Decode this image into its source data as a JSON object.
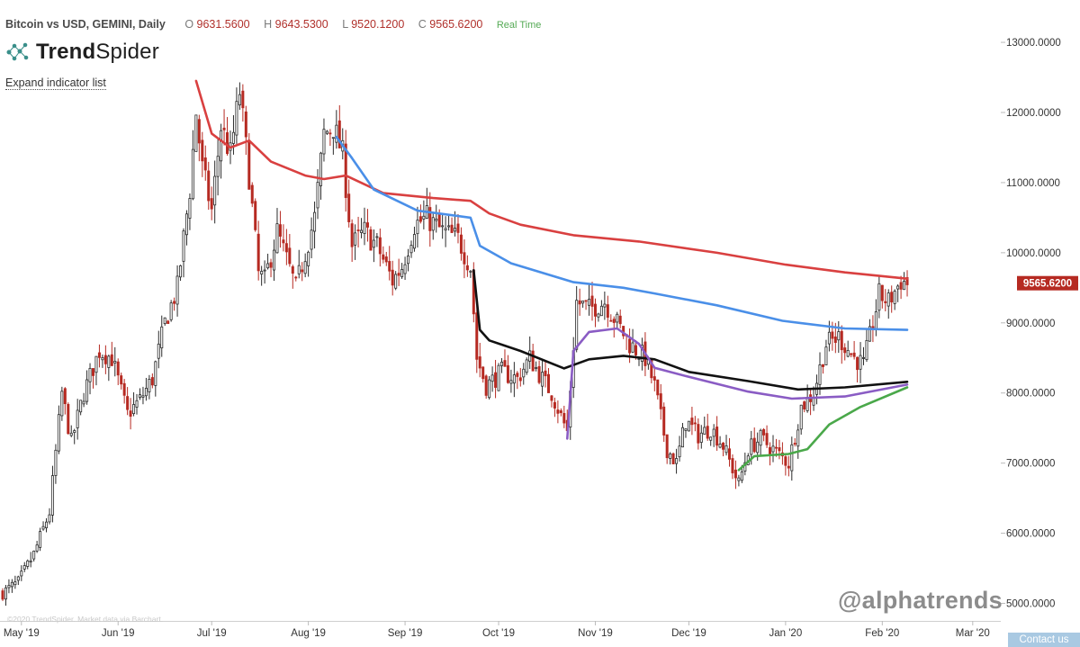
{
  "header": {
    "symbol": "Bitcoin vs USD, GEMINI, Daily",
    "open_label": "O",
    "open": "9631.5600",
    "high_label": "H",
    "high": "9643.5300",
    "low_label": "L",
    "low": "9520.1200",
    "close_label": "C",
    "close": "9565.6200",
    "realtime": "Real Time"
  },
  "brand": {
    "name_bold": "Trend",
    "name_rest": "Spider"
  },
  "expand_indicators": "Expand indicator list",
  "watermark": "@alphatrends",
  "copyright": "©2020 TrendSpider. Market data via Barchart.",
  "contact": "Contact us",
  "colors": {
    "up_candle": "#2b2b2b",
    "down_candle": "#b62a22",
    "ma_red": "#d94040",
    "ma_blue": "#4a8fe8",
    "ma_black": "#111111",
    "ma_purple": "#8a5cc4",
    "ma_green": "#4aa84a",
    "price_tag": "#b62a22"
  },
  "chart_data": {
    "type": "candlestick",
    "title": "Bitcoin vs USD, GEMINI, Daily",
    "y_axis": {
      "position": "right",
      "ticks": [
        5000,
        6000,
        7000,
        8000,
        9000,
        10000,
        11000,
        12000,
        13000
      ],
      "tick_labels": [
        "5000.0000",
        "6000.0000",
        "7000.0000",
        "8000.0000",
        "9000.0000",
        "10000.0000",
        "11000.0000",
        "12000.0000",
        "13000.0000"
      ],
      "range": [
        4750,
        13450
      ]
    },
    "x_axis": {
      "ticks": [
        "May '19",
        "Jun '19",
        "Jul '19",
        "Aug '19",
        "Sep '19",
        "Oct '19",
        "Nov '19",
        "Dec '19",
        "Jan '20",
        "Feb '20",
        "Mar '20"
      ],
      "range": [
        "2019-04-25",
        "2020-03-10"
      ]
    },
    "last_price": 9565.62,
    "last_price_label": "9565.6200",
    "grid": false,
    "price_waypoints": [
      [
        "2019-04-25",
        5150
      ],
      [
        "2019-04-30",
        5300
      ],
      [
        "2019-05-05",
        5700
      ],
      [
        "2019-05-10",
        6300
      ],
      [
        "2019-05-14",
        8000
      ],
      [
        "2019-05-17",
        7300
      ],
      [
        "2019-05-21",
        8000
      ],
      [
        "2019-05-26",
        8600
      ],
      [
        "2019-05-30",
        8500
      ],
      [
        "2019-06-04",
        7700
      ],
      [
        "2019-06-08",
        7900
      ],
      [
        "2019-06-12",
        8200
      ],
      [
        "2019-06-16",
        9000
      ],
      [
        "2019-06-20",
        9500
      ],
      [
        "2019-06-24",
        10900
      ],
      [
        "2019-06-26",
        12000
      ],
      [
        "2019-06-28",
        11200
      ],
      [
        "2019-07-01",
        10600
      ],
      [
        "2019-07-04",
        11800
      ],
      [
        "2019-07-07",
        11400
      ],
      [
        "2019-07-10",
        12300
      ],
      [
        "2019-07-13",
        11100
      ],
      [
        "2019-07-16",
        9700
      ],
      [
        "2019-07-18",
        9600
      ],
      [
        "2019-07-22",
        10300
      ],
      [
        "2019-07-25",
        9900
      ],
      [
        "2019-07-28",
        9500
      ],
      [
        "2019-07-31",
        10000
      ],
      [
        "2019-08-03",
        10500
      ],
      [
        "2019-08-06",
        11700
      ],
      [
        "2019-08-09",
        11800
      ],
      [
        "2019-08-12",
        11400
      ],
      [
        "2019-08-15",
        10100
      ],
      [
        "2019-08-19",
        10300
      ],
      [
        "2019-08-23",
        10100
      ],
      [
        "2019-08-28",
        9600
      ],
      [
        "2019-08-31",
        9800
      ],
      [
        "2019-09-04",
        10400
      ],
      [
        "2019-09-08",
        10500
      ],
      [
        "2019-09-13",
        10300
      ],
      [
        "2019-09-18",
        10200
      ],
      [
        "2019-09-22",
        9800
      ],
      [
        "2019-09-24",
        8500
      ],
      [
        "2019-09-27",
        8100
      ],
      [
        "2019-10-02",
        8300
      ],
      [
        "2019-10-07",
        8200
      ],
      [
        "2019-10-11",
        8500
      ],
      [
        "2019-10-15",
        8200
      ],
      [
        "2019-10-18",
        8000
      ],
      [
        "2019-10-23",
        7450
      ],
      [
        "2019-10-26",
        9300
      ],
      [
        "2019-10-30",
        9200
      ],
      [
        "2019-11-04",
        9300
      ],
      [
        "2019-11-08",
        9000
      ],
      [
        "2019-11-12",
        8700
      ],
      [
        "2019-11-17",
        8500
      ],
      [
        "2019-11-20",
        8100
      ],
      [
        "2019-11-24",
        7200
      ],
      [
        "2019-11-27",
        7000
      ],
      [
        "2019-11-30",
        7600
      ],
      [
        "2019-12-04",
        7400
      ],
      [
        "2019-12-08",
        7500
      ],
      [
        "2019-12-12",
        7250
      ],
      [
        "2019-12-17",
        6700
      ],
      [
        "2019-12-20",
        7200
      ],
      [
        "2019-12-24",
        7350
      ],
      [
        "2019-12-28",
        7200
      ],
      [
        "2020-01-02",
        7000
      ],
      [
        "2020-01-06",
        7800
      ],
      [
        "2020-01-10",
        8000
      ],
      [
        "2020-01-14",
        8700
      ],
      [
        "2020-01-18",
        8800
      ],
      [
        "2020-01-23",
        8500
      ],
      [
        "2020-01-26",
        8400
      ],
      [
        "2020-01-31",
        9400
      ],
      [
        "2020-02-03",
        9300
      ],
      [
        "2020-02-07",
        9600
      ],
      [
        "2020-02-09",
        9565
      ]
    ],
    "series": [
      {
        "name": "",
        "color": "#d94040",
        "points": [
          [
            "2019-06-26",
            12450
          ],
          [
            "2019-07-01",
            11700
          ],
          [
            "2019-07-07",
            11500
          ],
          [
            "2019-07-13",
            11600
          ],
          [
            "2019-07-20",
            11300
          ],
          [
            "2019-07-31",
            11100
          ],
          [
            "2019-08-06",
            11050
          ],
          [
            "2019-08-13",
            11100
          ],
          [
            "2019-08-25",
            10850
          ],
          [
            "2019-09-10",
            10780
          ],
          [
            "2019-09-22",
            10740
          ],
          [
            "2019-09-28",
            10560
          ],
          [
            "2019-10-08",
            10400
          ],
          [
            "2019-10-25",
            10250
          ],
          [
            "2019-11-15",
            10160
          ],
          [
            "2019-12-10",
            10000
          ],
          [
            "2020-01-01",
            9830
          ],
          [
            "2020-01-20",
            9720
          ],
          [
            "2020-02-09",
            9630
          ]
        ]
      },
      {
        "name": "",
        "color": "#4a8fe8",
        "points": [
          [
            "2019-08-10",
            11650
          ],
          [
            "2019-08-15",
            11350
          ],
          [
            "2019-08-22",
            10900
          ],
          [
            "2019-09-05",
            10600
          ],
          [
            "2019-09-22",
            10500
          ],
          [
            "2019-09-25",
            10100
          ],
          [
            "2019-10-05",
            9850
          ],
          [
            "2019-10-25",
            9580
          ],
          [
            "2019-11-10",
            9500
          ],
          [
            "2019-11-20",
            9420
          ],
          [
            "2019-12-10",
            9250
          ],
          [
            "2019-12-31",
            9030
          ],
          [
            "2020-01-20",
            8920
          ],
          [
            "2020-02-09",
            8900
          ]
        ]
      },
      {
        "name": "",
        "color": "#111111",
        "points": [
          [
            "2019-09-23",
            9750
          ],
          [
            "2019-09-25",
            8900
          ],
          [
            "2019-09-28",
            8750
          ],
          [
            "2019-10-08",
            8600
          ],
          [
            "2019-10-22",
            8350
          ],
          [
            "2019-10-30",
            8480
          ],
          [
            "2019-11-10",
            8530
          ],
          [
            "2019-11-20",
            8480
          ],
          [
            "2019-12-01",
            8300
          ],
          [
            "2019-12-20",
            8170
          ],
          [
            "2020-01-05",
            8050
          ],
          [
            "2020-01-20",
            8080
          ],
          [
            "2020-02-09",
            8160
          ]
        ]
      },
      {
        "name": "",
        "color": "#8a5cc4",
        "points": [
          [
            "2019-10-23",
            7350
          ],
          [
            "2019-10-25",
            8600
          ],
          [
            "2019-10-30",
            8870
          ],
          [
            "2019-11-08",
            8920
          ],
          [
            "2019-11-15",
            8700
          ],
          [
            "2019-11-20",
            8360
          ],
          [
            "2019-12-01",
            8230
          ],
          [
            "2019-12-20",
            8020
          ],
          [
            "2020-01-03",
            7920
          ],
          [
            "2020-01-20",
            7950
          ],
          [
            "2020-02-09",
            8120
          ]
        ]
      },
      {
        "name": "",
        "color": "#4aa84a",
        "points": [
          [
            "2019-12-17",
            6900
          ],
          [
            "2019-12-22",
            7100
          ],
          [
            "2020-01-02",
            7130
          ],
          [
            "2020-01-08",
            7200
          ],
          [
            "2020-01-15",
            7550
          ],
          [
            "2020-01-25",
            7800
          ],
          [
            "2020-02-09",
            8080
          ]
        ]
      }
    ]
  }
}
